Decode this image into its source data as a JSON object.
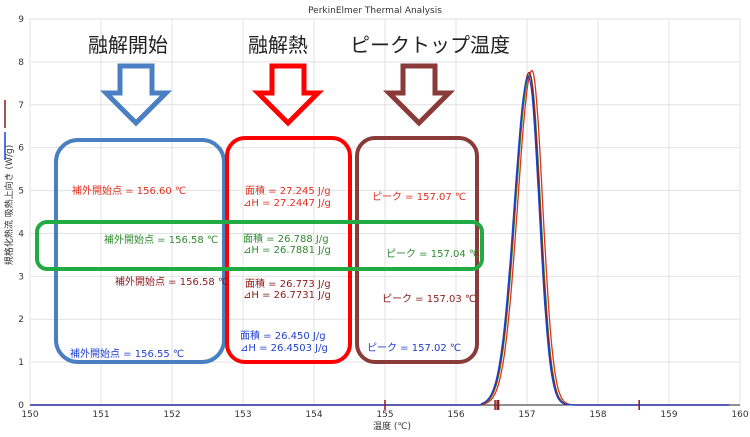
{
  "chart_data": {
    "type": "line",
    "title": "PerkinElmer Thermal Analysis",
    "xlabel": "温度 (℃)",
    "ylabel": "規格化熱流 吸熱上向き (W/g)",
    "xlim": [
      150,
      160
    ],
    "ylim": [
      0,
      9
    ],
    "xticks": [
      "150",
      "151",
      "152",
      "153",
      "154",
      "155",
      "156",
      "157",
      "158",
      "159",
      "160"
    ],
    "yticks": [
      "0",
      "1",
      "2",
      "3",
      "4",
      "5",
      "6",
      "7",
      "8",
      "9"
    ],
    "grid": true,
    "series": [
      {
        "color": "#e03020",
        "peak_x": 157.07,
        "onset_x": 156.6,
        "peak_y": 7.8
      },
      {
        "color": "#2e8b2e",
        "peak_x": 157.04,
        "onset_x": 156.58,
        "peak_y": 7.7
      },
      {
        "color": "#8b1a1a",
        "peak_x": 157.03,
        "onset_x": 156.58,
        "peak_y": 7.75
      },
      {
        "color": "#2040d0",
        "peak_x": 157.02,
        "onset_x": 156.55,
        "peak_y": 7.65
      }
    ]
  },
  "headings": {
    "onset": "融解開始",
    "heat": "融解熱",
    "peak": "ピークトップ温度"
  },
  "annotations": [
    {
      "group": "onset",
      "color": "#e03020",
      "text": "補外開始点 = 156.60 ℃"
    },
    {
      "group": "onset",
      "color": "#2e8b2e",
      "text": "補外開始点 = 156.58 ℃"
    },
    {
      "group": "onset",
      "color": "#8b1a1a",
      "text": "補外開始点 = 156.58 ℃"
    },
    {
      "group": "onset",
      "color": "#2040d0",
      "text": "補外開始点 = 156.55 ℃"
    },
    {
      "group": "heat",
      "color": "#e03020",
      "text": "面積 = 27.245 J/g"
    },
    {
      "group": "heat",
      "color": "#e03020",
      "text": "⊿H = 27.2447 J/g"
    },
    {
      "group": "heat",
      "color": "#2e8b2e",
      "text": "面積 = 26.788 J/g"
    },
    {
      "group": "heat",
      "color": "#2e8b2e",
      "text": "⊿H = 26.7881 J/g"
    },
    {
      "group": "heat",
      "color": "#8b1a1a",
      "text": "面積 = 26.773 J/g"
    },
    {
      "group": "heat",
      "color": "#8b1a1a",
      "text": "⊿H = 26.7731 J/g"
    },
    {
      "group": "heat",
      "color": "#2040d0",
      "text": "面積 = 26.450 J/g"
    },
    {
      "group": "heat",
      "color": "#2040d0",
      "text": "⊿H = 26.4503 J/g"
    },
    {
      "group": "peak",
      "color": "#e03020",
      "text": "ピーク = 157.07 ℃"
    },
    {
      "group": "peak",
      "color": "#2e8b2e",
      "text": "ピーク = 157.04 ℃"
    },
    {
      "group": "peak",
      "color": "#8b1a1a",
      "text": "ピーク = 157.03 ℃"
    },
    {
      "group": "peak",
      "color": "#2040d0",
      "text": "ピーク = 157.02 ℃"
    }
  ],
  "colors": {
    "onset_box": "#4a7fc1",
    "heat_box": "#ff0000",
    "peak_box": "#8b3a3a",
    "highlight_box": "#22aa44"
  }
}
